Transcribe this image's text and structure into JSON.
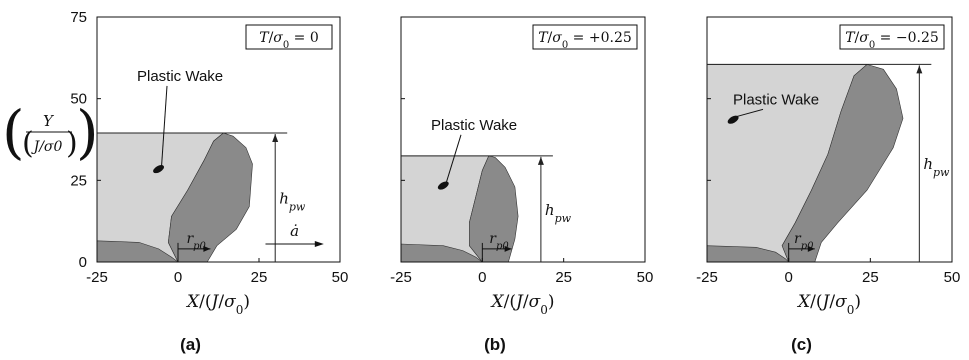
{
  "figure": {
    "y_axis_label": {
      "numerator": "Y",
      "denominator": "J/σ0"
    },
    "wake_label": "Plastic Wake",
    "rp0_label": "rp0",
    "hpw_label": "hpw",
    "adot_label": "ȧ",
    "xlabel": "X/(J/σ0)"
  },
  "colors": {
    "light_region": "#d4d4d4",
    "dark_region": "#8a8a8a",
    "outline": "#333333",
    "axis": "#111111"
  },
  "chart_data": [
    {
      "type": "area",
      "panel_label": "(a)",
      "legend": "T/σ0 = 0",
      "xlim": [
        -25,
        50
      ],
      "ylim": [
        0,
        75
      ],
      "xticks": [
        -25,
        0,
        25,
        50
      ],
      "yticks": [
        0,
        25,
        50,
        75
      ],
      "wake_height": 39.5,
      "rp0": 10,
      "plastic_zone_outline": [
        [
          0,
          0
        ],
        [
          -3,
          6
        ],
        [
          -2,
          14
        ],
        [
          3,
          22
        ],
        [
          8,
          31
        ],
        [
          11,
          37
        ],
        [
          14,
          39.5
        ],
        [
          17,
          38.5
        ],
        [
          21,
          35
        ],
        [
          23,
          30
        ],
        [
          22,
          17
        ],
        [
          18,
          10
        ],
        [
          12,
          5
        ],
        [
          9,
          0
        ]
      ],
      "wake_outline": [
        [
          -25,
          0
        ],
        [
          -25,
          39.5
        ],
        [
          14,
          39.5
        ],
        [
          11,
          37
        ],
        [
          8,
          31
        ],
        [
          3,
          22
        ],
        [
          -2,
          14
        ],
        [
          -3,
          6
        ],
        [
          0,
          0
        ]
      ],
      "notch_outline": [
        [
          -25,
          0
        ],
        [
          -25,
          6.5
        ],
        [
          -12,
          6
        ],
        [
          -6,
          4
        ],
        [
          -2,
          1.5
        ],
        [
          0,
          0
        ]
      ],
      "show_crack_arrow": true
    },
    {
      "type": "area",
      "panel_label": "(b)",
      "legend": "T/σ0 = +0.25",
      "xlim": [
        -25,
        50
      ],
      "ylim": [
        0,
        75
      ],
      "xticks": [
        -25,
        0,
        25,
        50
      ],
      "yticks": [
        0,
        25,
        50,
        75
      ],
      "wake_height": 32.5,
      "rp0": 9,
      "plastic_zone_outline": [
        [
          0,
          0
        ],
        [
          -4,
          5
        ],
        [
          -4,
          12
        ],
        [
          -2,
          20
        ],
        [
          0,
          28
        ],
        [
          2,
          32.5
        ],
        [
          4,
          32
        ],
        [
          7,
          29
        ],
        [
          10,
          23
        ],
        [
          11,
          14
        ],
        [
          10,
          7
        ],
        [
          8,
          0
        ]
      ],
      "wake_outline": [
        [
          -25,
          0
        ],
        [
          -25,
          32.5
        ],
        [
          2,
          32.5
        ],
        [
          0,
          28
        ],
        [
          -2,
          20
        ],
        [
          -4,
          12
        ],
        [
          -4,
          5
        ],
        [
          0,
          0
        ]
      ],
      "notch_outline": [
        [
          -25,
          0
        ],
        [
          -25,
          5.5
        ],
        [
          -12,
          5
        ],
        [
          -6,
          3.5
        ],
        [
          -2,
          1.5
        ],
        [
          0,
          0
        ]
      ],
      "show_crack_arrow": false
    },
    {
      "type": "area",
      "panel_label": "(c)",
      "legend": "T/σ0 = −0.25",
      "xlim": [
        -25,
        50
      ],
      "ylim": [
        0,
        75
      ],
      "xticks": [
        -25,
        0,
        25,
        50
      ],
      "yticks": [
        0,
        25,
        50,
        75
      ],
      "wake_height": 60.5,
      "rp0": 8,
      "plastic_zone_outline": [
        [
          0,
          0
        ],
        [
          -2,
          5
        ],
        [
          2,
          12
        ],
        [
          7,
          22
        ],
        [
          12,
          33
        ],
        [
          16,
          46
        ],
        [
          20,
          57
        ],
        [
          24,
          60.5
        ],
        [
          29,
          59
        ],
        [
          33,
          53
        ],
        [
          35,
          44
        ],
        [
          32,
          35
        ],
        [
          24,
          22
        ],
        [
          15,
          12
        ],
        [
          10,
          6
        ],
        [
          8,
          0
        ]
      ],
      "wake_outline": [
        [
          -25,
          0
        ],
        [
          -25,
          60.5
        ],
        [
          24,
          60.5
        ],
        [
          20,
          57
        ],
        [
          16,
          46
        ],
        [
          12,
          33
        ],
        [
          7,
          22
        ],
        [
          2,
          12
        ],
        [
          -2,
          5
        ],
        [
          0,
          0
        ]
      ],
      "notch_outline": [
        [
          -25,
          0
        ],
        [
          -25,
          5
        ],
        [
          -10,
          4.5
        ],
        [
          -4,
          3
        ],
        [
          -1,
          1
        ],
        [
          0,
          0
        ]
      ],
      "show_crack_arrow": false
    }
  ]
}
